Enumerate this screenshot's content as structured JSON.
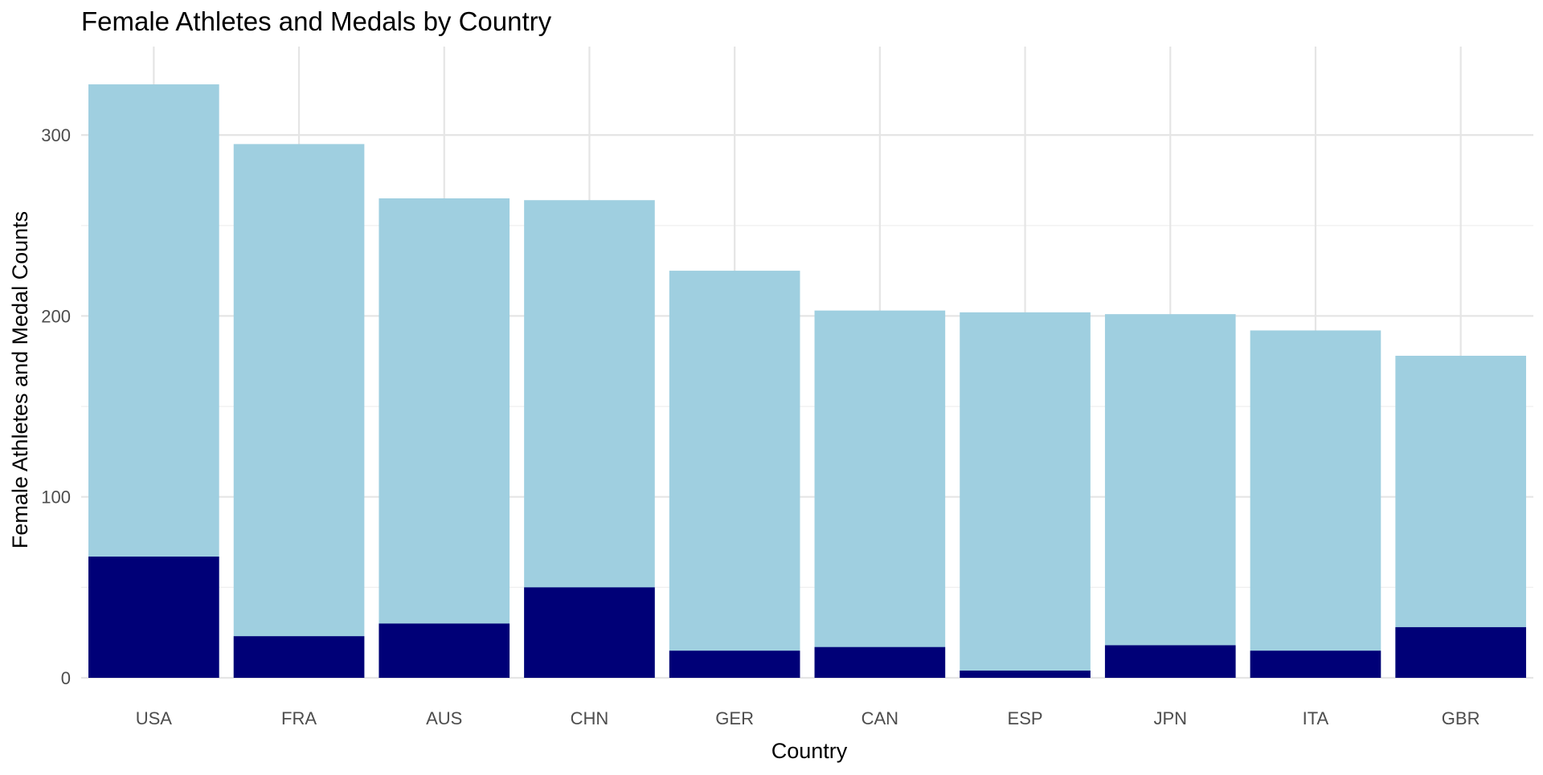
{
  "chart_data": {
    "type": "bar",
    "title": "Female Athletes and Medals by Country",
    "xlabel": "Country",
    "ylabel": "Female Athletes and Medal Counts",
    "categories": [
      "USA",
      "FRA",
      "AUS",
      "CHN",
      "GER",
      "CAN",
      "ESP",
      "JPN",
      "ITA",
      "GBR"
    ],
    "series": [
      {
        "values": [
          328,
          295,
          265,
          264,
          225,
          203,
          202,
          201,
          192,
          178
        ],
        "color": "#9fcfe0"
      },
      {
        "values": [
          67,
          23,
          30,
          50,
          15,
          17,
          4,
          18,
          15,
          28
        ],
        "color": "#000077"
      }
    ],
    "layout_mode": "overlapping",
    "ylim": [
      0,
      340
    ],
    "yticks": [
      0,
      100,
      200,
      300
    ],
    "yticks_minor": [
      50,
      150,
      250
    ],
    "grid": true,
    "legend": "none"
  }
}
